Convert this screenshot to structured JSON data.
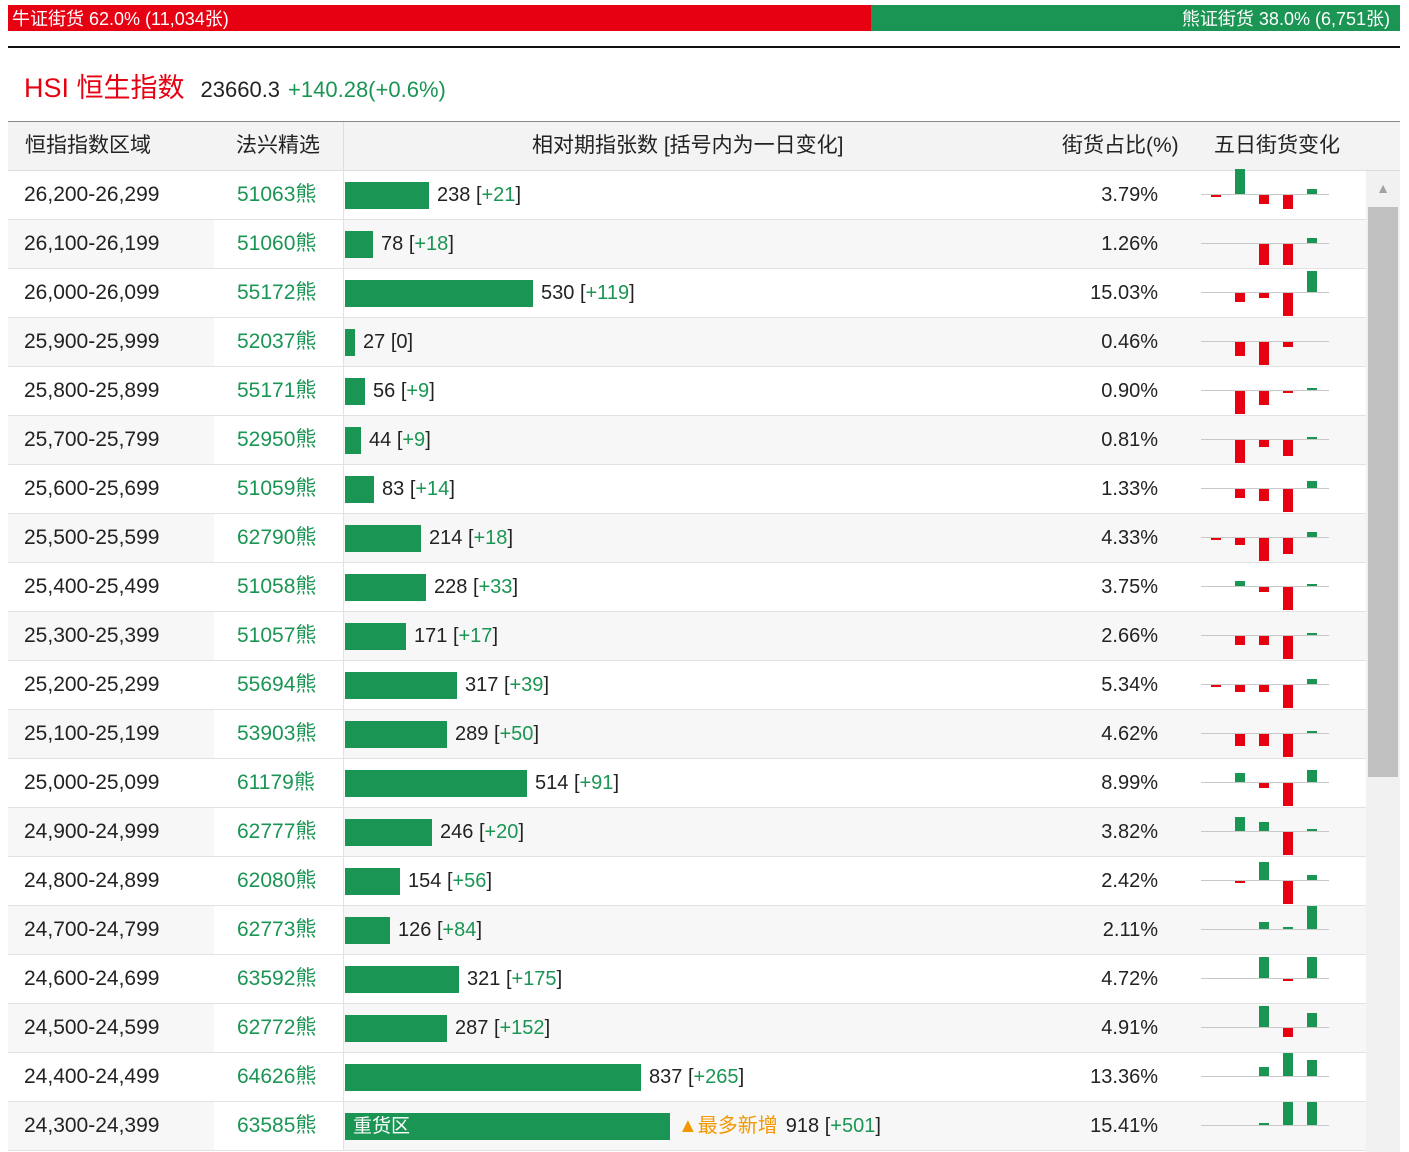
{
  "ratio": {
    "bull_label": "牛证街货 62.0% (11,034张)",
    "bull_fraction": 0.62,
    "bear_label": "熊证街货 38.0% (6,751张)",
    "bull_color": "#e60012",
    "bear_color": "#1a9553"
  },
  "index": {
    "name": "HSI 恒生指数",
    "value": "23660.3",
    "change": "+140.28(+0.6%)"
  },
  "table": {
    "headers": {
      "range": "恒指指数区域",
      "pick": "法兴精选",
      "contracts": "相对期指张数 [括号内为一日变化]",
      "share": "街货占比(%)",
      "five_day": "五日街货变化"
    },
    "bracket_open": "[",
    "bracket_close": "]",
    "rows": [
      {
        "range": "26,200-26,299",
        "code": "51063熊",
        "count": 238,
        "count_text": "238",
        "change": "+21",
        "share": "3.79%",
        "five_day": [
          -1,
          11,
          -4,
          -6,
          2
        ]
      },
      {
        "range": "26,100-26,199",
        "code": "51060熊",
        "count": 78,
        "count_text": "78",
        "change": "+18",
        "share": "1.26%",
        "five_day": [
          0,
          0,
          -9,
          -9,
          2
        ]
      },
      {
        "range": "26,000-26,099",
        "code": "55172熊",
        "count": 530,
        "count_text": "530",
        "change": "+119",
        "share": "15.03%",
        "five_day": [
          0,
          -4,
          -2,
          -10,
          9
        ]
      },
      {
        "range": "25,900-25,999",
        "code": "52037熊",
        "count": 27,
        "count_text": "27",
        "change": "0",
        "share": "0.46%",
        "five_day": [
          0,
          -6,
          -10,
          -2,
          0
        ]
      },
      {
        "range": "25,800-25,899",
        "code": "55171熊",
        "count": 56,
        "count_text": "56",
        "change": "+9",
        "share": "0.90%",
        "five_day": [
          0,
          -10,
          -6,
          -1,
          1
        ]
      },
      {
        "range": "25,700-25,799",
        "code": "52950熊",
        "count": 44,
        "count_text": "44",
        "change": "+9",
        "share": "0.81%",
        "five_day": [
          0,
          -10,
          -3,
          -7,
          1
        ]
      },
      {
        "range": "25,600-25,699",
        "code": "51059熊",
        "count": 83,
        "count_text": "83",
        "change": "+14",
        "share": "1.33%",
        "five_day": [
          0,
          -4,
          -5,
          -10,
          3
        ]
      },
      {
        "range": "25,500-25,599",
        "code": "62790熊",
        "count": 214,
        "count_text": "214",
        "change": "+18",
        "share": "4.33%",
        "five_day": [
          -1,
          -3,
          -10,
          -7,
          2
        ]
      },
      {
        "range": "25,400-25,499",
        "code": "51058熊",
        "count": 228,
        "count_text": "228",
        "change": "+33",
        "share": "3.75%",
        "five_day": [
          0,
          2,
          -2,
          -10,
          1
        ]
      },
      {
        "range": "25,300-25,399",
        "code": "51057熊",
        "count": 171,
        "count_text": "171",
        "change": "+17",
        "share": "2.66%",
        "five_day": [
          0,
          -4,
          -4,
          -10,
          1
        ]
      },
      {
        "range": "25,200-25,299",
        "code": "55694熊",
        "count": 317,
        "count_text": "317",
        "change": "+39",
        "share": "5.34%",
        "five_day": [
          -1,
          -3,
          -3,
          -10,
          2
        ]
      },
      {
        "range": "25,100-25,199",
        "code": "53903熊",
        "count": 289,
        "count_text": "289",
        "change": "+50",
        "share": "4.62%",
        "five_day": [
          0,
          -5,
          -5,
          -10,
          1
        ]
      },
      {
        "range": "25,000-25,099",
        "code": "61179熊",
        "count": 514,
        "count_text": "514",
        "change": "+91",
        "share": "8.99%",
        "five_day": [
          0,
          4,
          -2,
          -10,
          5
        ]
      },
      {
        "range": "24,900-24,999",
        "code": "62777熊",
        "count": 246,
        "count_text": "246",
        "change": "+20",
        "share": "3.82%",
        "five_day": [
          0,
          6,
          4,
          -10,
          1
        ]
      },
      {
        "range": "24,800-24,899",
        "code": "62080熊",
        "count": 154,
        "count_text": "154",
        "change": "+56",
        "share": "2.42%",
        "five_day": [
          0,
          -1,
          8,
          -10,
          2
        ]
      },
      {
        "range": "24,700-24,799",
        "code": "62773熊",
        "count": 126,
        "count_text": "126",
        "change": "+84",
        "share": "2.11%",
        "five_day": [
          0,
          0,
          3,
          1,
          10
        ]
      },
      {
        "range": "24,600-24,699",
        "code": "63592熊",
        "count": 321,
        "count_text": "321",
        "change": "+175",
        "share": "4.72%",
        "five_day": [
          0,
          0,
          9,
          -1,
          9
        ]
      },
      {
        "range": "24,500-24,599",
        "code": "62772熊",
        "count": 287,
        "count_text": "287",
        "change": "+152",
        "share": "4.91%",
        "five_day": [
          0,
          0,
          9,
          -4,
          6
        ]
      },
      {
        "range": "24,400-24,499",
        "code": "64626熊",
        "count": 837,
        "count_text": "837",
        "change": "+265",
        "share": "13.36%",
        "five_day": [
          0,
          0,
          4,
          10,
          7
        ]
      },
      {
        "range": "24,300-24,399",
        "code": "63585熊",
        "count": 918,
        "count_text": "918",
        "change": "+501",
        "share": "15.41%",
        "five_day": [
          0,
          0,
          1,
          10,
          10
        ],
        "bar_label": "重货区",
        "note": "▲最多新增"
      }
    ]
  },
  "colors": {
    "up": "#1a9553",
    "down": "#e60012",
    "note": "#f39800"
  },
  "scrollbar": {
    "up_icon": "triangle-up-icon"
  }
}
